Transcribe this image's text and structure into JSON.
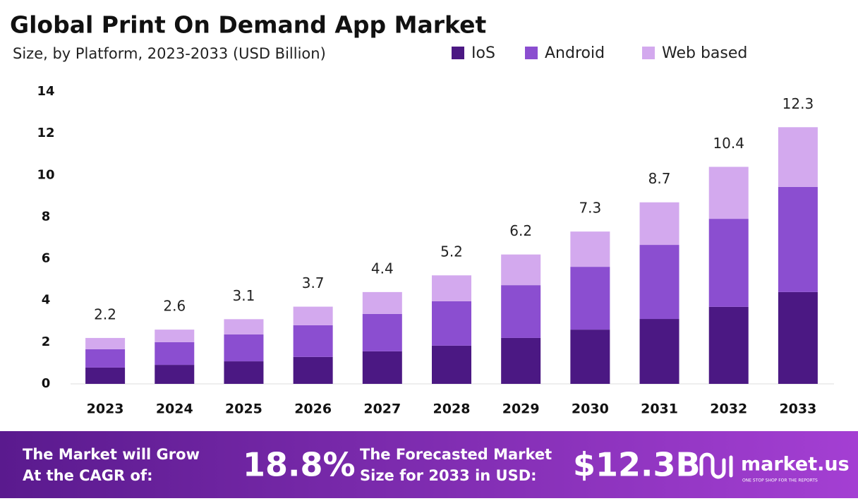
{
  "chart_data": {
    "type": "stacked-bar",
    "title": "Global Print On Demand App Market",
    "subtitle": "Size, by Platform, 2023-2033 (USD Billion)",
    "categories": [
      "2023",
      "2024",
      "2025",
      "2026",
      "2027",
      "2028",
      "2029",
      "2030",
      "2031",
      "2032",
      "2033"
    ],
    "series": [
      {
        "name": "IoS",
        "color": "#4b1883",
        "values": [
          0.78,
          0.91,
          1.08,
          1.29,
          1.56,
          1.83,
          2.2,
          2.6,
          3.11,
          3.69,
          4.4
        ]
      },
      {
        "name": "Android",
        "color": "#8b4ed0",
        "values": [
          0.88,
          1.09,
          1.29,
          1.52,
          1.79,
          2.13,
          2.53,
          3.01,
          3.55,
          4.22,
          5.04
        ]
      },
      {
        "name": "Web based",
        "color": "#d3a9ee",
        "values": [
          0.54,
          0.6,
          0.73,
          0.89,
          1.05,
          1.24,
          1.47,
          1.69,
          2.04,
          2.49,
          2.86
        ]
      }
    ],
    "totals": [
      2.2,
      2.6,
      3.1,
      3.7,
      4.4,
      5.2,
      6.2,
      7.3,
      8.7,
      10.4,
      12.3
    ],
    "ylim": [
      0,
      14
    ],
    "yticks": [
      0,
      2,
      4,
      6,
      8,
      10,
      12,
      14
    ],
    "grid": false,
    "legend": "top"
  },
  "footer": {
    "cagr_text": [
      "The Market will Grow",
      "At the CAGR of:"
    ],
    "cagr": "18.8%",
    "forecast_text": [
      "The Forecasted Market",
      "Size for 2033 in USD:"
    ],
    "forecast": "$12.3B",
    "brand": "market.us",
    "tagline": "ONE STOP SHOP FOR THE REPORTS"
  }
}
